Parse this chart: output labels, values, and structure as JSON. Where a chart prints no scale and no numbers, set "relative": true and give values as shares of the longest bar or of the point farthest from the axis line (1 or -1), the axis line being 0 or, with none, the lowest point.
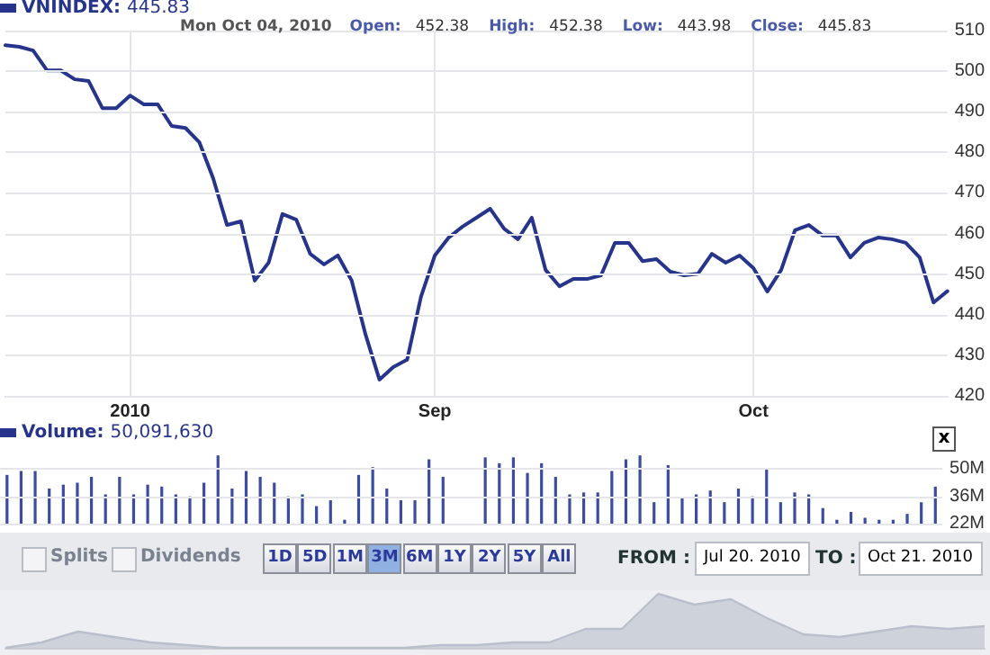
{
  "chart_data": [
    {
      "type": "line",
      "title": "VNINDEX: 445.83",
      "annotations": [
        "Mon Oct 04, 2010",
        "Open:",
        "452.38",
        "High:",
        "452.38",
        "Low:",
        "443.98",
        "Close:",
        "445.83"
      ],
      "categories": [
        null,
        null,
        null,
        null,
        null,
        null,
        null,
        null,
        null,
        "2010",
        null,
        null,
        null,
        null,
        null,
        null,
        null,
        null,
        null,
        null,
        null,
        null,
        null,
        null,
        null,
        null,
        null,
        null,
        null,
        null,
        null,
        "Sep",
        null,
        null,
        null,
        null,
        null,
        null,
        null,
        null,
        null,
        null,
        null,
        null,
        null,
        null,
        null,
        null,
        null,
        null,
        null,
        null,
        null,
        null,
        "Oct",
        null,
        null,
        null,
        null,
        null,
        null,
        null,
        null,
        null,
        null,
        null,
        null,
        null,
        null
      ],
      "series": [
        {
          "color": "#27348b",
          "values": [
            506.4,
            506.0,
            505.1,
            500.2,
            500.2,
            498.0,
            497.6,
            490.9,
            490.9,
            494.0,
            491.8,
            491.8,
            486.5,
            486.0,
            482.5,
            473.6,
            462.1,
            463.0,
            448.4,
            452.8,
            464.8,
            463.4,
            455.0,
            452.4,
            454.6,
            448.4,
            435.1,
            424.0,
            427.1,
            428.9,
            444.4,
            454.6,
            459.0,
            461.7,
            463.9,
            466.1,
            461.2,
            458.6,
            463.9,
            451.0,
            447.0,
            448.8,
            448.8,
            449.7,
            457.7,
            457.7,
            453.2,
            453.7,
            450.6,
            449.7,
            450.1,
            455.0,
            452.8,
            454.6,
            451.5,
            445.7,
            451.0,
            460.8,
            462.1,
            459.5,
            459.5,
            454.1,
            457.7,
            459.0,
            458.6,
            457.7,
            454.1,
            443.0,
            445.8
          ]
        }
      ],
      "ylim": [
        420,
        510
      ],
      "yticks": [
        420,
        430,
        440,
        450,
        460,
        470,
        480,
        490,
        500,
        510
      ],
      "grid": true,
      "marker": "none",
      "line_style": "solid"
    },
    {
      "type": "bar",
      "title": "Volume: 50,091,630",
      "categories": [
        null,
        null,
        null,
        null,
        null,
        null,
        null,
        null,
        null,
        null,
        null,
        null,
        null,
        null,
        null,
        null,
        null,
        null,
        null,
        null,
        null,
        null,
        null,
        null,
        null,
        null,
        null,
        null,
        null,
        null,
        null,
        null,
        null,
        null,
        null,
        null,
        null,
        null,
        null,
        null,
        null,
        null,
        null,
        null,
        null,
        null,
        null,
        null,
        null,
        null,
        null,
        null,
        null,
        null,
        null,
        null,
        null,
        null,
        null,
        null,
        null,
        null,
        null,
        null,
        null,
        null,
        null
      ],
      "series": [
        {
          "color": "#3d4ba0",
          "values": [
            47,
            49,
            49,
            40,
            42,
            43,
            46,
            37,
            46,
            37,
            42,
            41,
            37,
            36,
            43,
            57,
            40,
            49,
            46,
            43,
            36,
            37,
            31,
            34,
            24,
            47,
            51,
            40,
            34,
            34,
            55,
            46,
            null,
            null,
            56,
            53,
            56,
            48,
            53,
            46,
            37,
            38,
            38,
            49,
            55,
            57,
            33,
            52,
            35,
            37,
            39,
            33,
            40,
            36,
            50,
            33,
            38,
            37,
            30,
            24,
            28,
            25,
            24,
            24,
            27,
            33,
            41
          ]
        }
      ],
      "ylim": [
        22,
        58
      ],
      "yticks": [
        {
          "value": 22,
          "label": "22M"
        },
        {
          "value": 36,
          "label": "36M"
        },
        {
          "value": 50,
          "label": "50M"
        }
      ],
      "grid": true
    },
    {
      "type": "other",
      "annotations": [
        "x",
        "Splits",
        "Dividends",
        "1D",
        "5D",
        "1M",
        "3M",
        "6M",
        "1Y",
        "2Y",
        "5Y",
        "All",
        "FROM :",
        "Jul 20. 2010",
        "TO :",
        "Oct 21. 2010"
      ]
    },
    {
      "type": "area",
      "relative": true,
      "categories": [
        null,
        null,
        null,
        null,
        null,
        null,
        null,
        null,
        null,
        null,
        null,
        null,
        null,
        null,
        null,
        null,
        null,
        null,
        null,
        null,
        null,
        null,
        null,
        null,
        null,
        null,
        null,
        null
      ],
      "series": [
        {
          "color": "#b9bfcc",
          "values": [
            0,
            0.1,
            0.3,
            0.2,
            0.1,
            0.05,
            0,
            0,
            0,
            0,
            0,
            0,
            0.05,
            0.05,
            0.1,
            0.1,
            0.35,
            0.35,
            1,
            0.8,
            0.9,
            0.55,
            0.25,
            0.2,
            0.3,
            0.4,
            0.35,
            0.4
          ]
        }
      ]
    }
  ]
}
